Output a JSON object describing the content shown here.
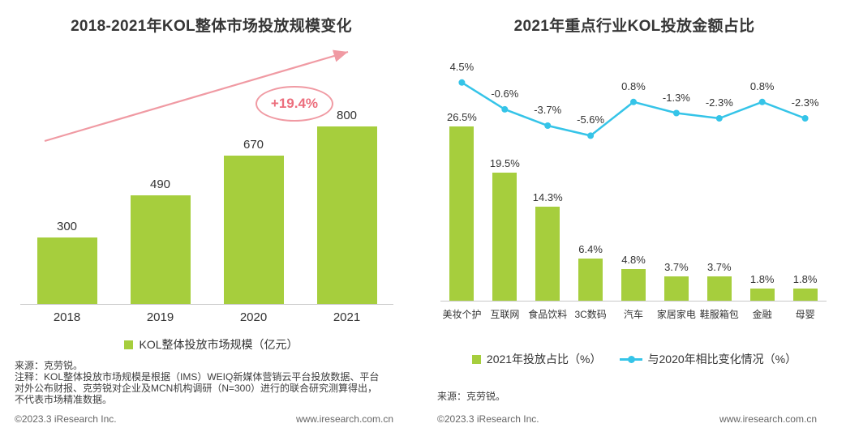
{
  "footer": {
    "copyright": "©2023.3 iResearch Inc.",
    "website": "www.iresearch.com.cn"
  },
  "colors": {
    "bar_green": "#a6ce3d",
    "line_cyan": "#35c4e8",
    "accent_pink": "#f09aa3",
    "annotation_text_pink": "#ec6e7d"
  },
  "left_panel": {
    "title": "2018-2021年KOL整体市场投放规模变化",
    "growth_annotation": "+19.4%",
    "legend_bar": "KOL整体投放市场规模（亿元）",
    "source": "来源：克劳锐。",
    "note_lines": [
      "注释：KOL整体投放市场规模是根据（IMS）WEIQ新媒体营销云平台投放数据、平台",
      "对外公布财报、克劳锐对企业及MCN机构调研（N=300）进行的联合研究测算得出，",
      "不代表市场精准数据。"
    ]
  },
  "right_panel": {
    "title": "2021年重点行业KOL投放金额占比",
    "legend_bar": "2021年投放占比（%）",
    "legend_line": "与2020年相比变化情况（%）",
    "source": "来源：克劳锐。"
  },
  "chart_data": [
    {
      "type": "bar",
      "title": "2018-2021年KOL整体市场投放规模变化",
      "categories": [
        "2018",
        "2019",
        "2020",
        "2021"
      ],
      "values": [
        300,
        490,
        670,
        800
      ],
      "series_name": "KOL整体投放市场规模（亿元）",
      "unit": "亿元",
      "annotation": "+19.4%",
      "trend_arrow": true,
      "ylim": [
        0,
        800
      ],
      "grid": false,
      "legend_position": "bottom",
      "bar_color": "#a6ce3d"
    },
    {
      "type": "bar+line",
      "title": "2021年重点行业KOL投放金额占比",
      "categories": [
        "美妆个护",
        "互联网",
        "食品饮料",
        "3C数码",
        "汽车",
        "家居家电",
        "鞋服箱包",
        "金融",
        "母婴"
      ],
      "series": [
        {
          "name": "2021年投放占比（%）",
          "kind": "bar",
          "values": [
            26.5,
            19.5,
            14.3,
            6.4,
            4.8,
            3.7,
            3.7,
            1.8,
            1.8
          ],
          "color": "#a6ce3d",
          "label_suffix": "%"
        },
        {
          "name": "与2020年相比变化情况（%）",
          "kind": "line",
          "values": [
            4.5,
            -0.6,
            -3.7,
            -5.6,
            0.8,
            -1.3,
            -2.3,
            0.8,
            -2.3
          ],
          "color": "#35c4e8",
          "label_suffix": "%"
        }
      ],
      "grid": false,
      "legend_position": "bottom"
    }
  ]
}
